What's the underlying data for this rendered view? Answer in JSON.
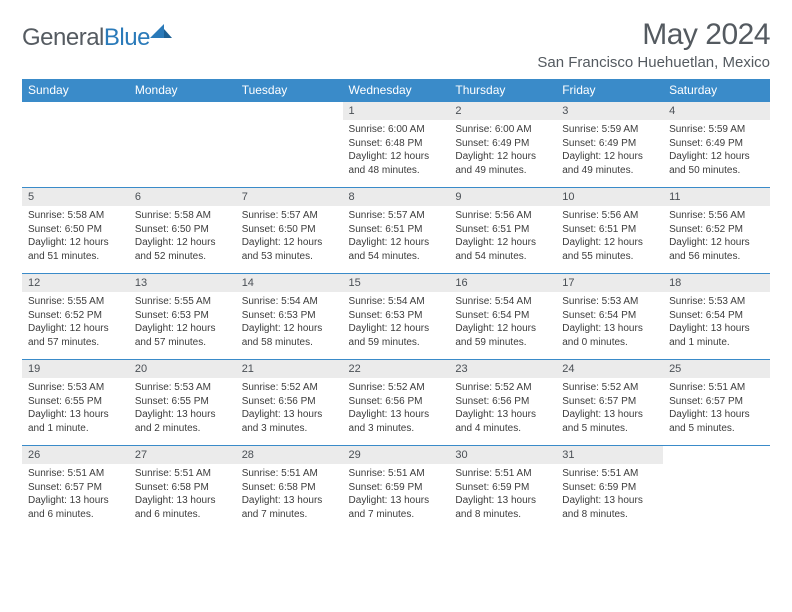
{
  "logo": {
    "text1": "General",
    "text2": "Blue"
  },
  "title": "May 2024",
  "location": "San Francisco Huehuetlan, Mexico",
  "colors": {
    "header_bg": "#3a8bc9",
    "header_text": "#ffffff",
    "daynum_bg": "#ebebeb",
    "text": "#3c3c3c",
    "border": "#3a8bc9"
  },
  "weekdays": [
    "Sunday",
    "Monday",
    "Tuesday",
    "Wednesday",
    "Thursday",
    "Friday",
    "Saturday"
  ],
  "weeks": [
    [
      null,
      null,
      null,
      {
        "n": "1",
        "sr": "6:00 AM",
        "ss": "6:48 PM",
        "dl": "12 hours and 48 minutes."
      },
      {
        "n": "2",
        "sr": "6:00 AM",
        "ss": "6:49 PM",
        "dl": "12 hours and 49 minutes."
      },
      {
        "n": "3",
        "sr": "5:59 AM",
        "ss": "6:49 PM",
        "dl": "12 hours and 49 minutes."
      },
      {
        "n": "4",
        "sr": "5:59 AM",
        "ss": "6:49 PM",
        "dl": "12 hours and 50 minutes."
      }
    ],
    [
      {
        "n": "5",
        "sr": "5:58 AM",
        "ss": "6:50 PM",
        "dl": "12 hours and 51 minutes."
      },
      {
        "n": "6",
        "sr": "5:58 AM",
        "ss": "6:50 PM",
        "dl": "12 hours and 52 minutes."
      },
      {
        "n": "7",
        "sr": "5:57 AM",
        "ss": "6:50 PM",
        "dl": "12 hours and 53 minutes."
      },
      {
        "n": "8",
        "sr": "5:57 AM",
        "ss": "6:51 PM",
        "dl": "12 hours and 54 minutes."
      },
      {
        "n": "9",
        "sr": "5:56 AM",
        "ss": "6:51 PM",
        "dl": "12 hours and 54 minutes."
      },
      {
        "n": "10",
        "sr": "5:56 AM",
        "ss": "6:51 PM",
        "dl": "12 hours and 55 minutes."
      },
      {
        "n": "11",
        "sr": "5:56 AM",
        "ss": "6:52 PM",
        "dl": "12 hours and 56 minutes."
      }
    ],
    [
      {
        "n": "12",
        "sr": "5:55 AM",
        "ss": "6:52 PM",
        "dl": "12 hours and 57 minutes."
      },
      {
        "n": "13",
        "sr": "5:55 AM",
        "ss": "6:53 PM",
        "dl": "12 hours and 57 minutes."
      },
      {
        "n": "14",
        "sr": "5:54 AM",
        "ss": "6:53 PM",
        "dl": "12 hours and 58 minutes."
      },
      {
        "n": "15",
        "sr": "5:54 AM",
        "ss": "6:53 PM",
        "dl": "12 hours and 59 minutes."
      },
      {
        "n": "16",
        "sr": "5:54 AM",
        "ss": "6:54 PM",
        "dl": "12 hours and 59 minutes."
      },
      {
        "n": "17",
        "sr": "5:53 AM",
        "ss": "6:54 PM",
        "dl": "13 hours and 0 minutes."
      },
      {
        "n": "18",
        "sr": "5:53 AM",
        "ss": "6:54 PM",
        "dl": "13 hours and 1 minute."
      }
    ],
    [
      {
        "n": "19",
        "sr": "5:53 AM",
        "ss": "6:55 PM",
        "dl": "13 hours and 1 minute."
      },
      {
        "n": "20",
        "sr": "5:53 AM",
        "ss": "6:55 PM",
        "dl": "13 hours and 2 minutes."
      },
      {
        "n": "21",
        "sr": "5:52 AM",
        "ss": "6:56 PM",
        "dl": "13 hours and 3 minutes."
      },
      {
        "n": "22",
        "sr": "5:52 AM",
        "ss": "6:56 PM",
        "dl": "13 hours and 3 minutes."
      },
      {
        "n": "23",
        "sr": "5:52 AM",
        "ss": "6:56 PM",
        "dl": "13 hours and 4 minutes."
      },
      {
        "n": "24",
        "sr": "5:52 AM",
        "ss": "6:57 PM",
        "dl": "13 hours and 5 minutes."
      },
      {
        "n": "25",
        "sr": "5:51 AM",
        "ss": "6:57 PM",
        "dl": "13 hours and 5 minutes."
      }
    ],
    [
      {
        "n": "26",
        "sr": "5:51 AM",
        "ss": "6:57 PM",
        "dl": "13 hours and 6 minutes."
      },
      {
        "n": "27",
        "sr": "5:51 AM",
        "ss": "6:58 PM",
        "dl": "13 hours and 6 minutes."
      },
      {
        "n": "28",
        "sr": "5:51 AM",
        "ss": "6:58 PM",
        "dl": "13 hours and 7 minutes."
      },
      {
        "n": "29",
        "sr": "5:51 AM",
        "ss": "6:59 PM",
        "dl": "13 hours and 7 minutes."
      },
      {
        "n": "30",
        "sr": "5:51 AM",
        "ss": "6:59 PM",
        "dl": "13 hours and 8 minutes."
      },
      {
        "n": "31",
        "sr": "5:51 AM",
        "ss": "6:59 PM",
        "dl": "13 hours and 8 minutes."
      },
      null
    ]
  ],
  "labels": {
    "sunrise": "Sunrise:",
    "sunset": "Sunset:",
    "daylight": "Daylight:"
  }
}
